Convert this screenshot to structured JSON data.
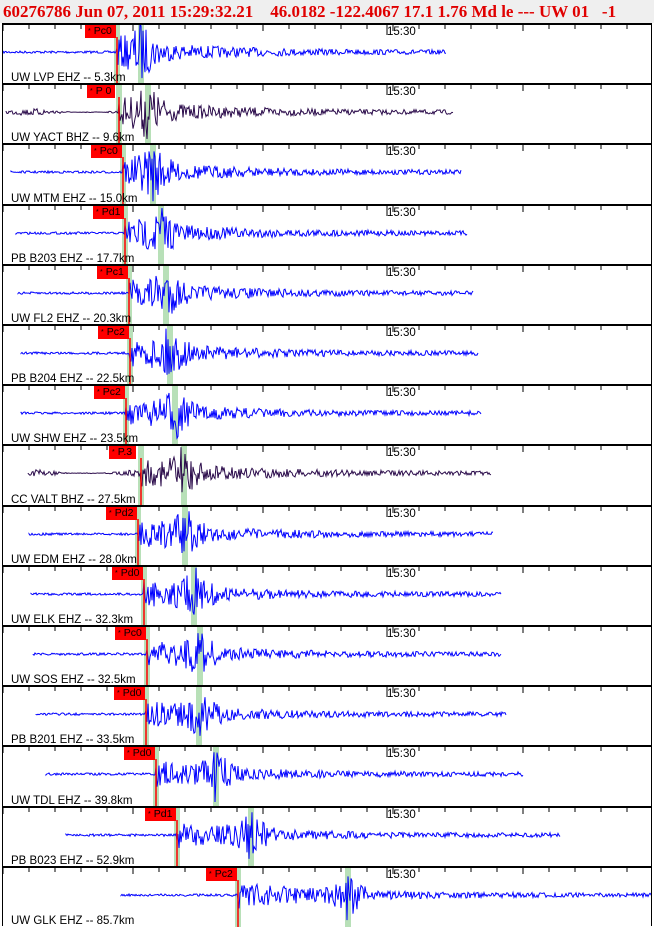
{
  "header": {
    "title": "60276786 Jun 07, 2011 15:29:32.21    46.0182 -122.4067 17.1 1.76 Md le --- UW 01   -1"
  },
  "chart_data": {
    "type": "seismogram",
    "title": "60276786 Jun 07, 2011 15:29:32.21    46.0182 -122.4067 17.1 1.76 Md le --- UW 01   -1",
    "time_tick_label": "15:30",
    "colors": {
      "trace": "#0000ff",
      "trace_bhz": "#2a0a4a",
      "pick": "#ff0000",
      "s_window": "#b8e0b8",
      "header_text": "#e00000"
    },
    "traces": [
      {
        "station": "UW LVP EHZ -- 5.3km",
        "pick": "Pc0",
        "bhz": false
      },
      {
        "station": "UW YACT BHZ -- 9.6km",
        "pick": "P 0",
        "bhz": true
      },
      {
        "station": "UW MTM EHZ -- 15.0km",
        "pick": "Pc0",
        "bhz": false
      },
      {
        "station": "PB B203 EHZ -- 17.7km",
        "pick": "Pd1",
        "bhz": false
      },
      {
        "station": "UW FL2 EHZ -- 20.3km",
        "pick": "Pc1",
        "bhz": false
      },
      {
        "station": "PB B204 EHZ -- 22.5km",
        "pick": "Pc2",
        "bhz": false
      },
      {
        "station": "UW SHW EHZ -- 23.5km",
        "pick": "Pc2",
        "bhz": false
      },
      {
        "station": "CC VALT BHZ -- 27.5km",
        "pick": "P.3",
        "bhz": true
      },
      {
        "station": "UW EDM EHZ -- 28.0km",
        "pick": "Pd2",
        "bhz": false
      },
      {
        "station": "UW ELK EHZ -- 32.3km",
        "pick": "Pd0",
        "bhz": false
      },
      {
        "station": "UW SOS EHZ -- 32.5km",
        "pick": "Pc0",
        "bhz": false
      },
      {
        "station": "PB B201 EHZ -- 33.5km",
        "pick": "Pd0",
        "bhz": false
      },
      {
        "station": "UW TDL EHZ -- 39.8km",
        "pick": "Pd0",
        "bhz": false
      },
      {
        "station": "PB B023 EHZ -- 52.9km",
        "pick": "Pd1",
        "bhz": false
      },
      {
        "station": "UW GLK EHZ -- 85.7km",
        "pick": "Pc2",
        "bhz": false
      }
    ]
  }
}
